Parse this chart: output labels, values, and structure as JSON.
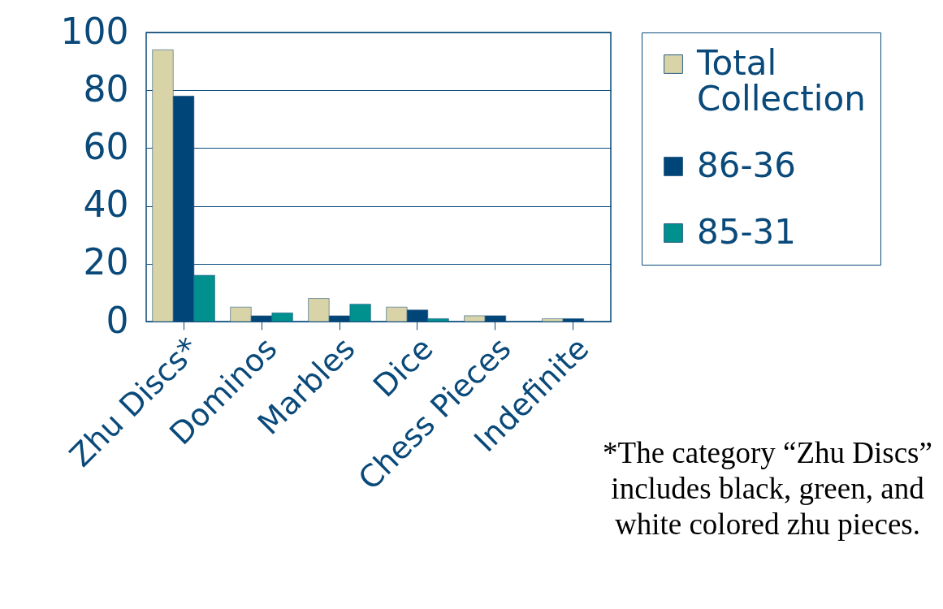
{
  "chart_data": {
    "type": "bar",
    "categories": [
      "Zhu Discs*",
      "Dominos",
      "Marbles",
      "Dice",
      "Chess  Pieces",
      "Indefinite"
    ],
    "series": [
      {
        "name": "Total Collection",
        "color": "#d8d4a8",
        "values": [
          94,
          5,
          8,
          5,
          2,
          1
        ]
      },
      {
        "name": "86-36",
        "color": "#004578",
        "values": [
          78,
          2,
          2,
          4,
          2,
          1
        ]
      },
      {
        "name": "85-31",
        "color": "#00918f",
        "values": [
          16,
          3,
          6,
          1,
          null,
          null
        ]
      }
    ],
    "ylim": [
      0,
      100
    ],
    "yticks": [
      0,
      20,
      40,
      60,
      80,
      100
    ],
    "grid": "y",
    "legend": "right",
    "annotations": [
      "*The category “Zhu Discs” includes black, green, and white colored zhu pieces."
    ]
  }
}
